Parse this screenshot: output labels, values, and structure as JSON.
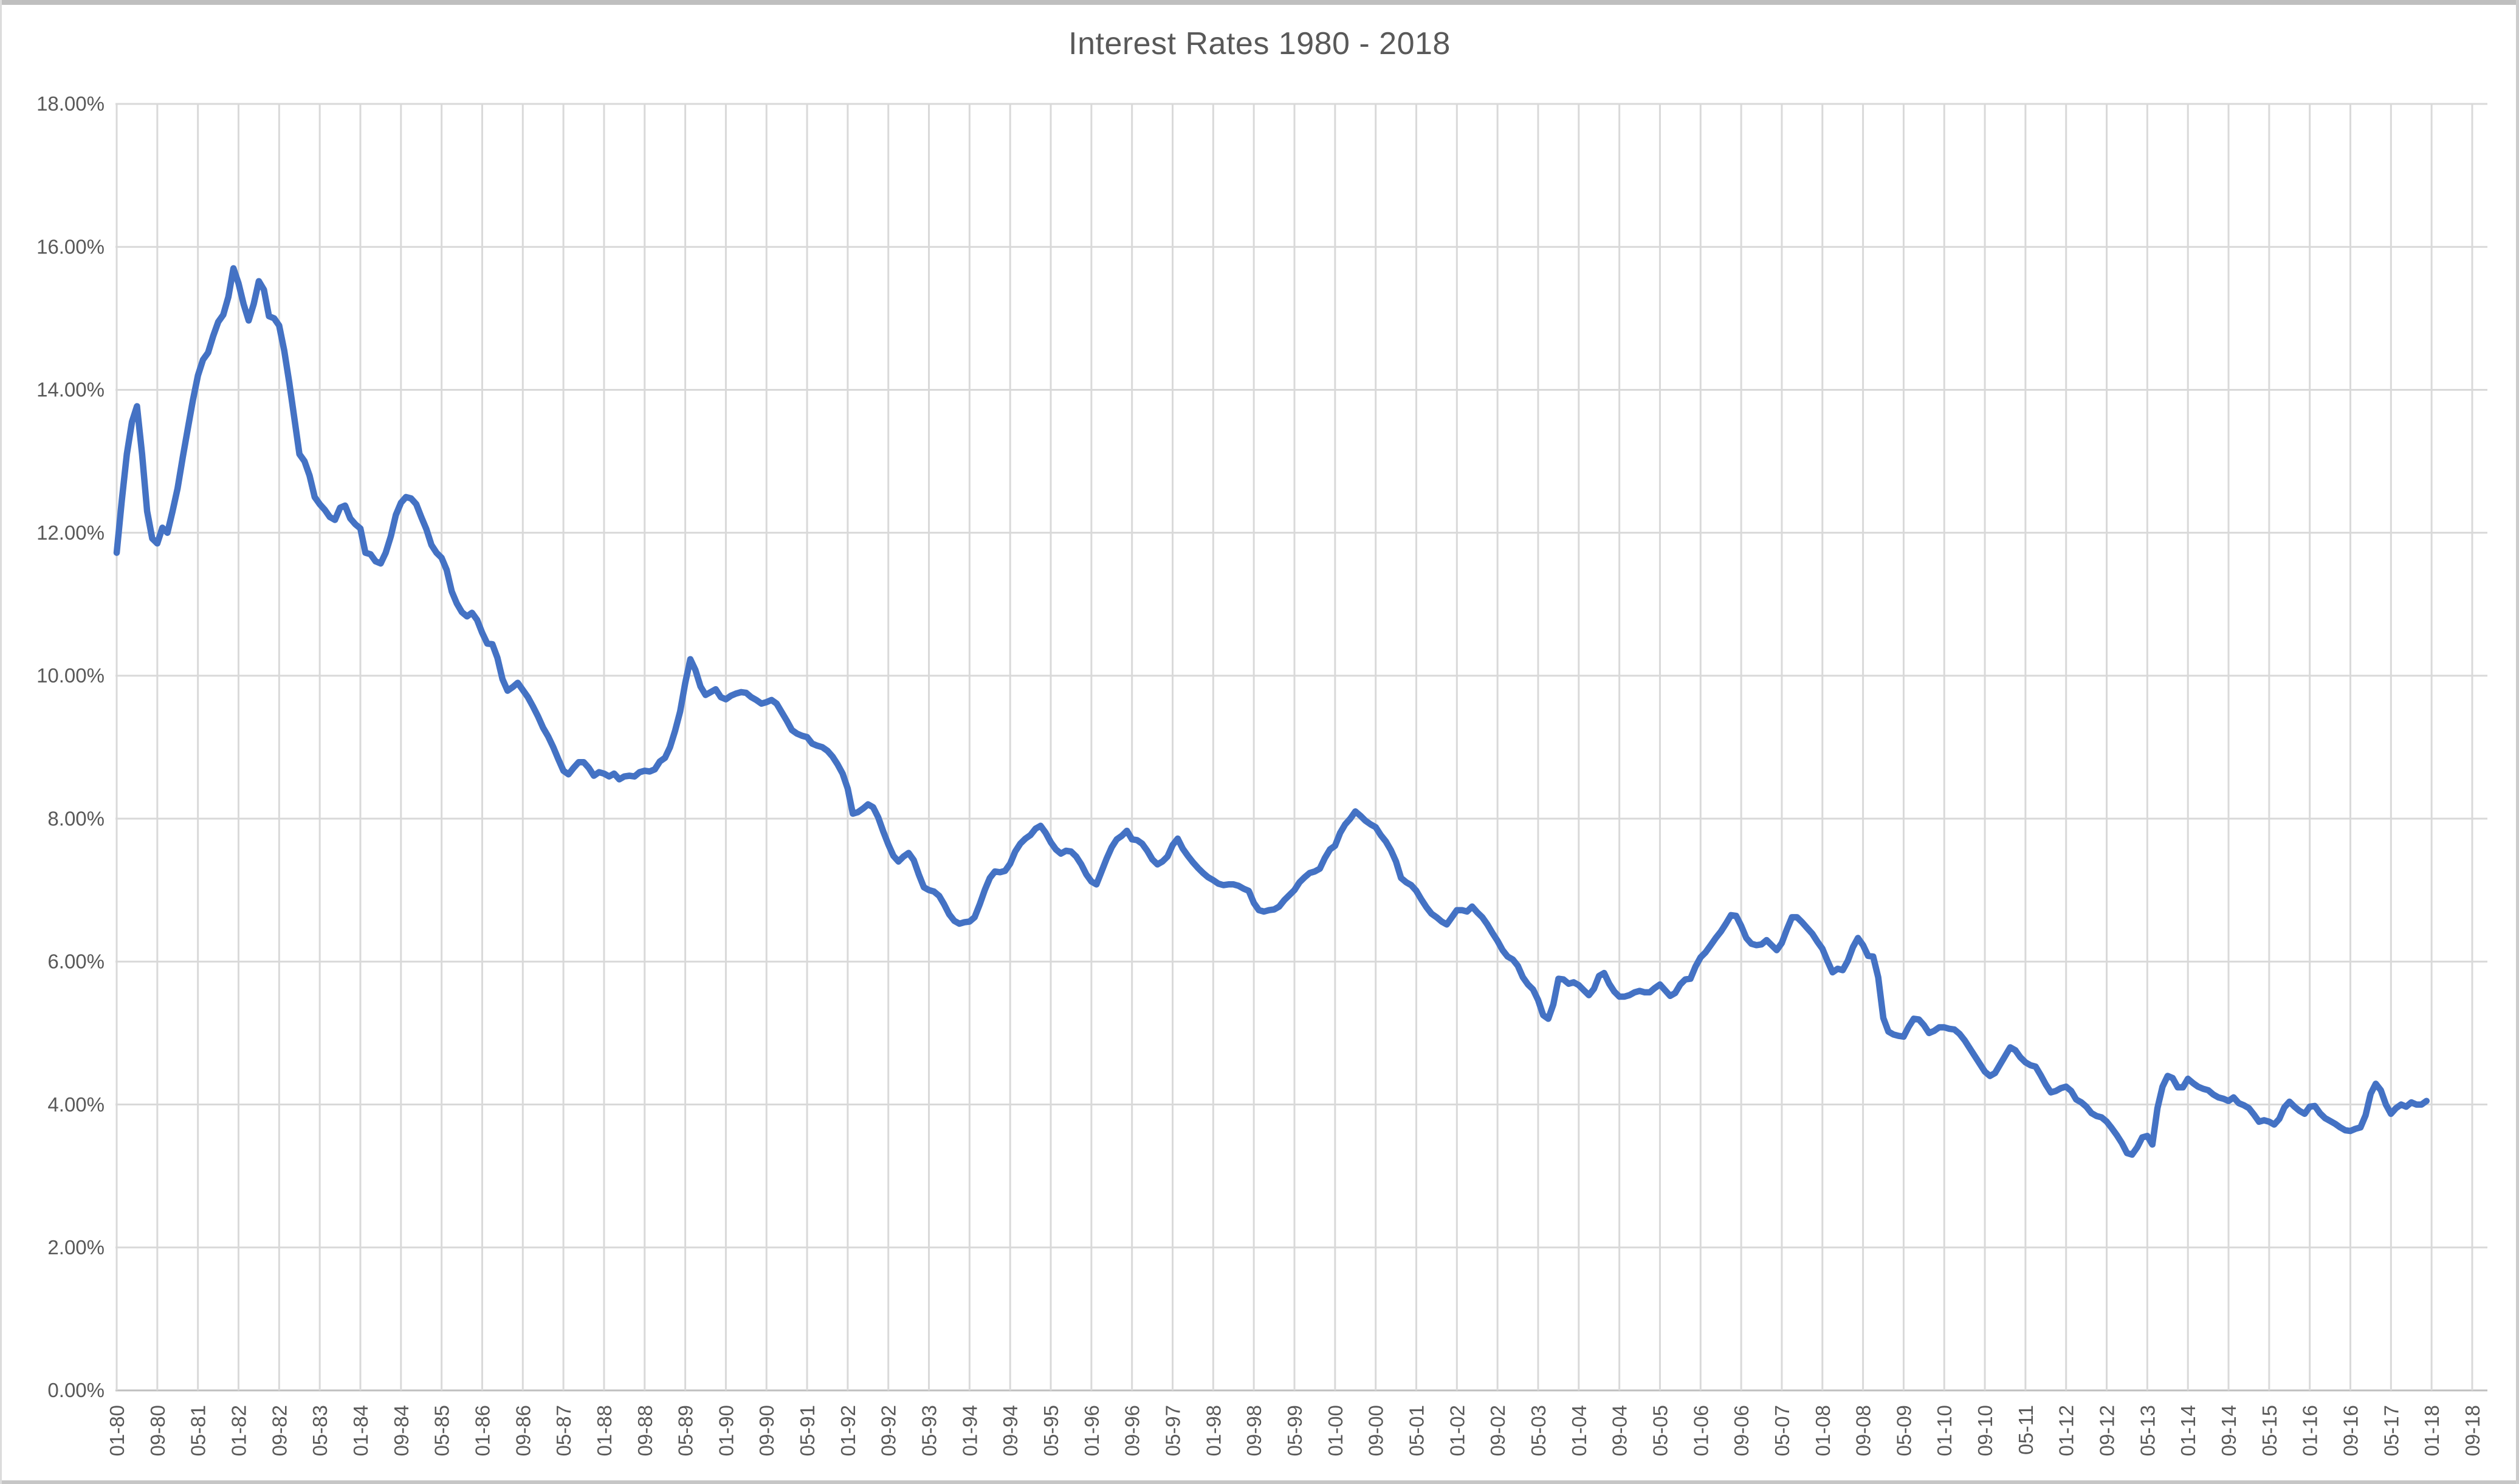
{
  "chart_data": {
    "type": "line",
    "title": "Interest Rates 1980 - 2018",
    "xlabel": "",
    "ylabel": "",
    "ylim": [
      0,
      18
    ],
    "grid": true,
    "legend": "none",
    "x_start_month": "01-80",
    "x_last_data_month": "12-17",
    "x_tick_interval_months": 8,
    "y_tick_labels": [
      "18.00%",
      "16.00%",
      "14.00%",
      "12.00%",
      "10.00%",
      "8.00%",
      "6.00%",
      "4.00%",
      "2.00%",
      "0.00%"
    ],
    "x_tick_labels": [
      "01-80",
      "09-80",
      "05-81",
      "01-82",
      "09-82",
      "05-83",
      "01-84",
      "09-84",
      "05-85",
      "01-86",
      "09-86",
      "05-87",
      "01-88",
      "09-88",
      "05-89",
      "01-90",
      "09-90",
      "05-91",
      "01-92",
      "09-92",
      "05-93",
      "01-94",
      "09-94",
      "05-95",
      "01-96",
      "09-96",
      "05-97",
      "01-98",
      "09-98",
      "05-99",
      "01-00",
      "09-00",
      "05-01",
      "01-02",
      "09-02",
      "05-03",
      "01-04",
      "09-04",
      "05-05",
      "01-06",
      "09-06",
      "05-07",
      "01-08",
      "09-08",
      "05-09",
      "01-10",
      "09-10",
      "05-11",
      "01-12",
      "09-12",
      "05-13",
      "01-14",
      "09-14",
      "05-15",
      "01-16",
      "09-16",
      "05-17",
      "01-18",
      "09-18"
    ],
    "series": [
      {
        "color": "#4472C4",
        "start": "1980-01",
        "frequency": "monthly",
        "values": [
          11.72,
          12.45,
          13.1,
          13.55,
          13.77,
          13.1,
          12.3,
          11.92,
          11.85,
          12.07,
          12.0,
          12.3,
          12.62,
          13.05,
          13.45,
          13.85,
          14.2,
          14.42,
          14.52,
          14.75,
          14.95,
          15.05,
          15.3,
          15.7,
          15.49,
          15.2,
          14.97,
          15.2,
          15.52,
          15.4,
          15.03,
          15.0,
          14.9,
          14.55,
          14.1,
          13.6,
          13.1,
          13.0,
          12.8,
          12.5,
          12.4,
          12.32,
          12.22,
          12.18,
          12.35,
          12.38,
          12.2,
          12.12,
          12.06,
          11.72,
          11.7,
          11.6,
          11.57,
          11.72,
          11.95,
          12.25,
          12.42,
          12.5,
          12.48,
          12.4,
          12.22,
          12.05,
          11.83,
          11.72,
          11.65,
          11.48,
          11.18,
          11.01,
          10.89,
          10.83,
          10.88,
          10.78,
          10.6,
          10.45,
          10.44,
          10.25,
          9.95,
          9.79,
          9.84,
          9.9,
          9.8,
          9.7,
          9.57,
          9.43,
          9.27,
          9.15,
          9.0,
          8.83,
          8.67,
          8.62,
          8.71,
          8.79,
          8.79,
          8.71,
          8.6,
          8.65,
          8.63,
          8.59,
          8.63,
          8.55,
          8.59,
          8.6,
          8.59,
          8.65,
          8.67,
          8.66,
          8.69,
          8.8,
          8.85,
          9.0,
          9.23,
          9.5,
          9.9,
          10.23,
          10.08,
          9.85,
          9.73,
          9.77,
          9.81,
          9.7,
          9.67,
          9.72,
          9.75,
          9.77,
          9.76,
          9.7,
          9.66,
          9.61,
          9.63,
          9.66,
          9.61,
          9.49,
          9.37,
          9.24,
          9.19,
          9.16,
          9.14,
          9.05,
          9.02,
          9.0,
          8.95,
          8.87,
          8.76,
          8.63,
          8.42,
          8.07,
          8.09,
          8.14,
          8.2,
          8.16,
          8.02,
          7.82,
          7.64,
          7.48,
          7.4,
          7.47,
          7.52,
          7.42,
          7.22,
          7.04,
          7.0,
          6.98,
          6.92,
          6.8,
          6.66,
          6.57,
          6.53,
          6.55,
          6.56,
          6.62,
          6.8,
          7.0,
          7.17,
          7.26,
          7.25,
          7.27,
          7.37,
          7.54,
          7.65,
          7.72,
          7.77,
          7.86,
          7.9,
          7.8,
          7.67,
          7.57,
          7.51,
          7.55,
          7.54,
          7.47,
          7.36,
          7.22,
          7.12,
          7.08,
          7.26,
          7.44,
          7.6,
          7.71,
          7.76,
          7.83,
          7.71,
          7.7,
          7.65,
          7.55,
          7.43,
          7.36,
          7.4,
          7.47,
          7.63,
          7.72,
          7.58,
          7.48,
          7.39,
          7.31,
          7.24,
          7.18,
          7.14,
          7.09,
          7.07,
          7.08,
          7.08,
          7.06,
          7.02,
          6.99,
          6.82,
          6.72,
          6.7,
          6.72,
          6.73,
          6.77,
          6.86,
          6.93,
          7.0,
          7.11,
          7.18,
          7.24,
          7.26,
          7.3,
          7.45,
          7.57,
          7.62,
          7.8,
          7.92,
          8.0,
          8.1,
          8.04,
          7.97,
          7.92,
          7.88,
          7.77,
          7.68,
          7.56,
          7.4,
          7.17,
          7.11,
          7.07,
          6.99,
          6.87,
          6.76,
          6.67,
          6.62,
          6.56,
          6.52,
          6.62,
          6.72,
          6.72,
          6.7,
          6.77,
          6.69,
          6.62,
          6.52,
          6.4,
          6.29,
          6.16,
          6.07,
          6.03,
          5.94,
          5.78,
          5.68,
          5.61,
          5.46,
          5.25,
          5.2,
          5.4,
          5.76,
          5.75,
          5.69,
          5.71,
          5.67,
          5.6,
          5.53,
          5.62,
          5.8,
          5.84,
          5.69,
          5.58,
          5.51,
          5.51,
          5.53,
          5.57,
          5.59,
          5.57,
          5.57,
          5.63,
          5.68,
          5.6,
          5.52,
          5.56,
          5.68,
          5.75,
          5.76,
          5.93,
          6.06,
          6.13,
          6.23,
          6.33,
          6.42,
          6.53,
          6.65,
          6.64,
          6.5,
          6.33,
          6.25,
          6.23,
          6.24,
          6.3,
          6.23,
          6.16,
          6.26,
          6.45,
          6.62,
          6.62,
          6.55,
          6.47,
          6.39,
          6.28,
          6.18,
          6.01,
          5.85,
          5.9,
          5.88,
          6.01,
          6.2,
          6.33,
          6.23,
          6.08,
          6.07,
          5.78,
          5.21,
          5.02,
          4.98,
          4.96,
          4.95,
          5.09,
          5.2,
          5.19,
          5.11,
          5.0,
          5.03,
          5.08,
          5.08,
          5.06,
          5.05,
          4.99,
          4.9,
          4.79,
          4.68,
          4.57,
          4.46,
          4.4,
          4.44,
          4.56,
          4.68,
          4.8,
          4.76,
          4.66,
          4.59,
          4.55,
          4.53,
          4.41,
          4.28,
          4.17,
          4.19,
          4.23,
          4.25,
          4.19,
          4.07,
          4.03,
          3.97,
          3.88,
          3.84,
          3.82,
          3.76,
          3.67,
          3.57,
          3.46,
          3.32,
          3.3,
          3.4,
          3.54,
          3.56,
          3.44,
          3.95,
          4.25,
          4.4,
          4.37,
          4.24,
          4.24,
          4.36,
          4.3,
          4.25,
          4.22,
          4.2,
          4.14,
          4.1,
          4.08,
          4.05,
          4.1,
          4.02,
          3.99,
          3.95,
          3.86,
          3.76,
          3.78,
          3.76,
          3.72,
          3.8,
          3.96,
          4.04,
          3.97,
          3.91,
          3.87,
          3.97,
          3.98,
          3.88,
          3.81,
          3.77,
          3.73,
          3.68,
          3.64,
          3.63,
          3.66,
          3.68,
          3.85,
          4.15,
          4.29,
          4.2,
          4.0,
          3.87,
          3.95,
          4.0,
          3.97,
          4.03,
          4.0,
          4.0,
          4.05
        ]
      }
    ],
    "colors": {
      "line": "#4472C4",
      "gridline": "#D9D9D9",
      "axis_line": "#BFBFBF",
      "text": "#595959",
      "background": "#FFFFFF"
    }
  }
}
